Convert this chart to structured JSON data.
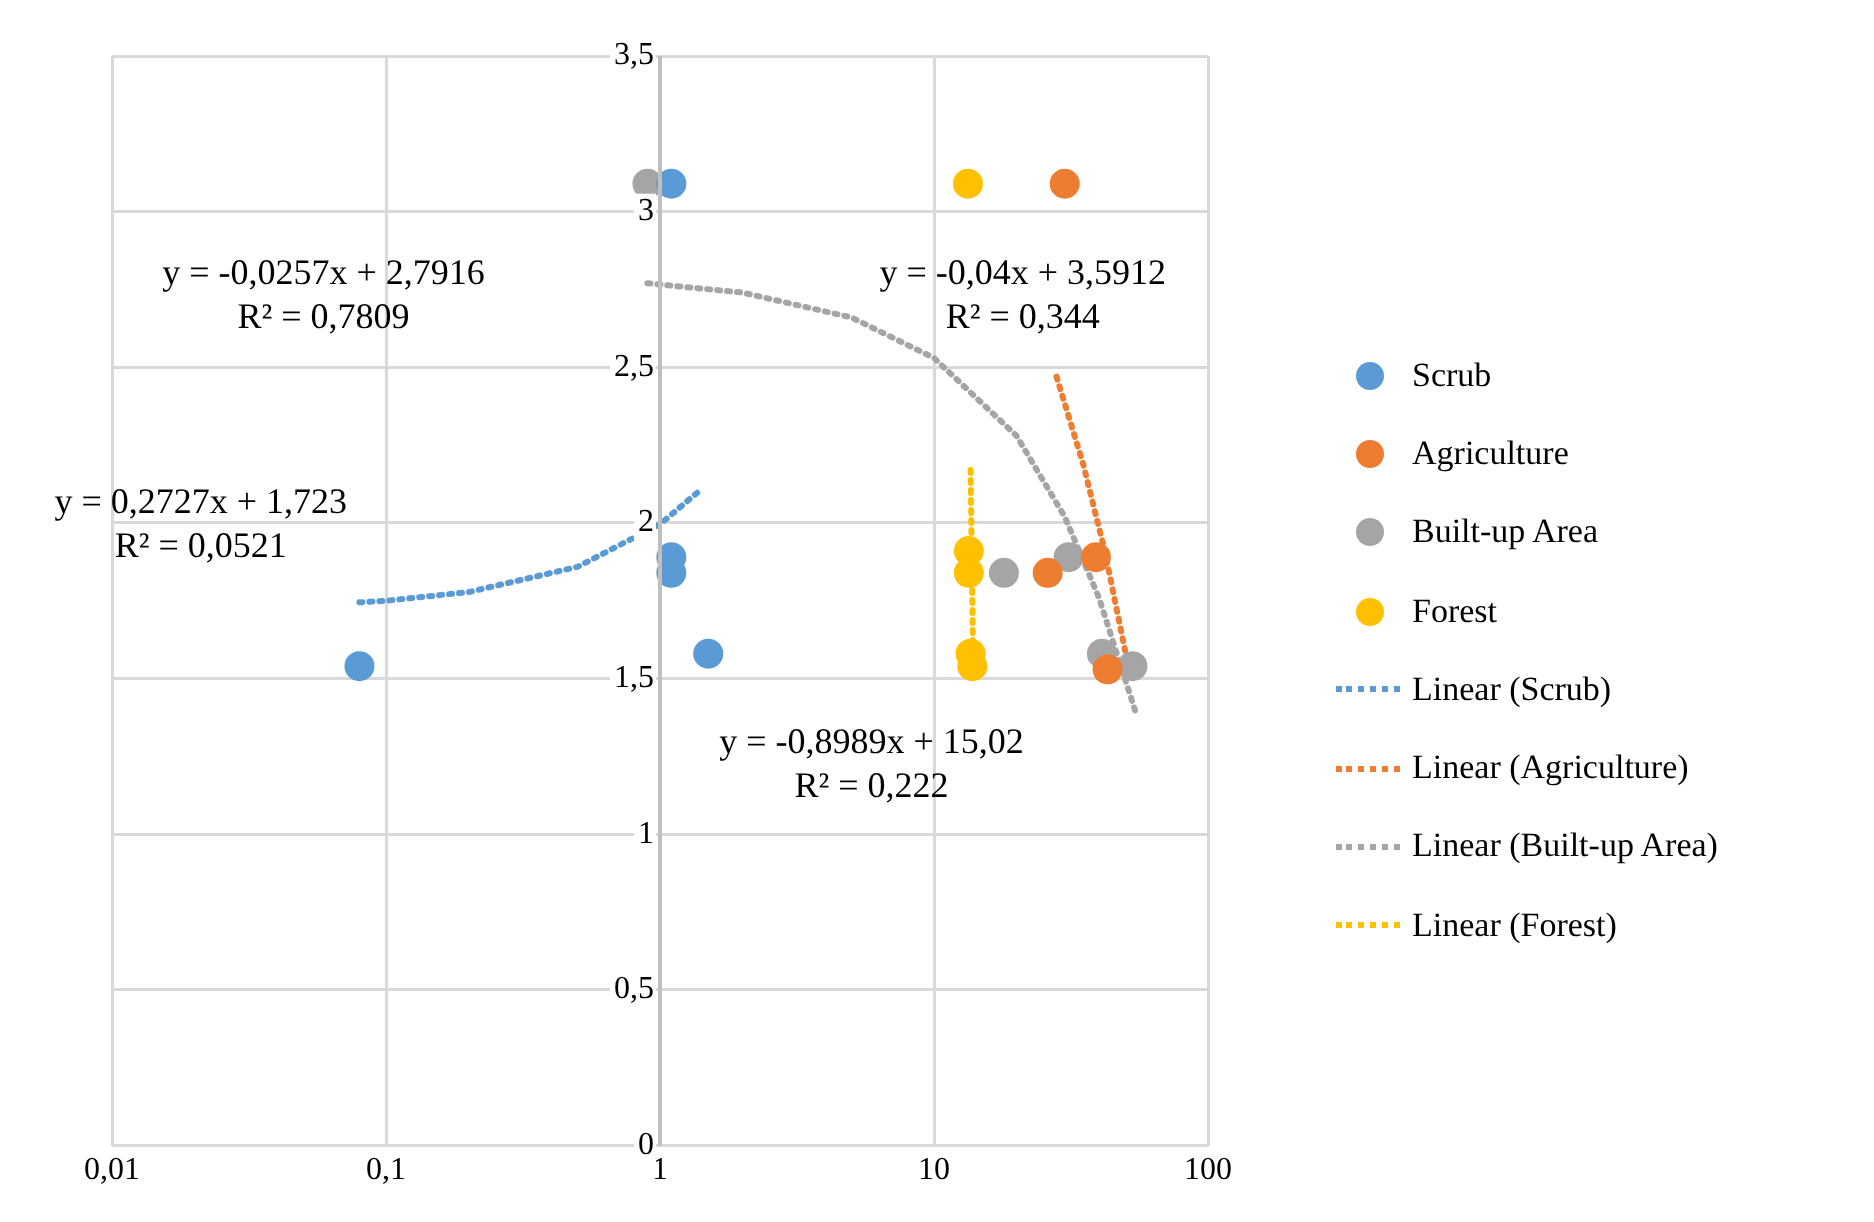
{
  "chart_data": {
    "type": "scatter",
    "log": "x",
    "grid": true,
    "legend": "right",
    "marker": "circle",
    "xlim": [
      0.01,
      100
    ],
    "xticks": [
      {
        "value": 0.01,
        "label": "0,01"
      },
      {
        "value": 0.1,
        "label": "0,1"
      },
      1,
      10,
      100
    ],
    "ylim": [
      0,
      3.5
    ],
    "yticks": [
      0,
      {
        "value": 0.5,
        "label": "0,5"
      },
      1,
      {
        "value": 1.5,
        "label": "1,5"
      },
      2,
      {
        "value": 2.5,
        "label": "2,5"
      },
      3,
      {
        "value": 3.5,
        "label": "3,5"
      }
    ],
    "series": [
      {
        "name": "Scrub",
        "color": "#5b9bd5",
        "x": [
          0.08,
          1.1,
          1.1,
          1.1,
          1.5
        ],
        "values": [
          1.54,
          3.09,
          1.89,
          1.84,
          1.58
        ]
      },
      {
        "name": "Agriculture",
        "color": "#ed7d31",
        "x": [
          30,
          26,
          39,
          43
        ],
        "values": [
          3.09,
          1.84,
          1.89,
          1.53
        ]
      },
      {
        "name": "Built-up Area",
        "color": "#a5a5a5",
        "x": [
          0.9,
          18,
          31,
          41,
          53
        ],
        "values": [
          3.09,
          1.84,
          1.89,
          1.58,
          1.54
        ]
      },
      {
        "name": "Forest",
        "color": "#ffc000",
        "x": [
          13.3,
          13.4,
          13.4,
          13.6,
          13.8
        ],
        "values": [
          3.09,
          1.91,
          1.84,
          1.58,
          1.54
        ]
      },
      {
        "name": "Linear (Scrub)",
        "type": "line",
        "line_style": "dotted",
        "marker": "none",
        "color": "#5b9bd5",
        "x": [
          0.08,
          0.1,
          0.2,
          0.5,
          1,
          1.4
        ],
        "values": [
          1.745,
          1.75,
          1.778,
          1.859,
          1.996,
          2.105
        ]
      },
      {
        "name": "Linear (Agriculture)",
        "type": "line",
        "line_style": "dotted",
        "marker": "none",
        "color": "#ed7d31",
        "x": [
          28,
          35,
          42,
          52
        ],
        "values": [
          2.47,
          2.19,
          1.91,
          1.51
        ]
      },
      {
        "name": "Linear (Built-up Area)",
        "type": "line",
        "line_style": "dotted",
        "marker": "none",
        "color": "#a5a5a5",
        "x": [
          0.9,
          2,
          5,
          10,
          20,
          30,
          40,
          55
        ],
        "values": [
          2.77,
          2.74,
          2.66,
          2.53,
          2.28,
          2.02,
          1.76,
          1.38
        ]
      },
      {
        "name": "Linear (Forest)",
        "type": "line",
        "line_style": "dotted",
        "marker": "none",
        "color": "#ffc000",
        "x": [
          13.6,
          13.9
        ],
        "values": [
          2.17,
          1.55
        ]
      }
    ],
    "annotations": [
      "y = -0,0257x + 2,7916\nR² = 0,7809",
      "y = -0,04x + 3,5912\nR² = 0,344",
      "y = 0,2727x + 1,723\nR² = 0,0521",
      "y = -0,8989x + 15,02\nR² = 0,222"
    ]
  }
}
